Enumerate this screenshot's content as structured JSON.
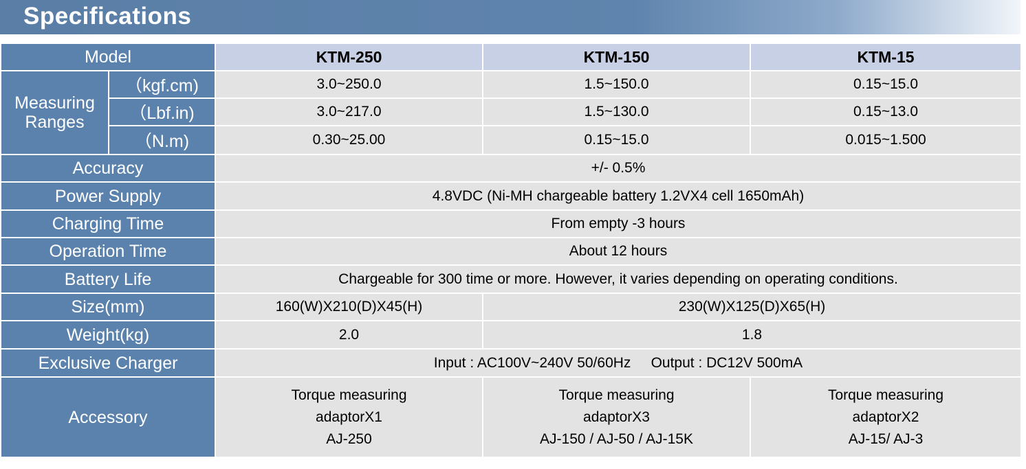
{
  "title": "Specifications",
  "columns": [
    "KTM-250",
    "KTM-150",
    "KTM-15"
  ],
  "labels": {
    "model": "Model",
    "measuring_ranges": [
      "Measuring",
      "Ranges"
    ],
    "units": [
      "（kgf.cm)",
      "（Lbf.in)",
      "（N.m)"
    ],
    "accuracy": "Accuracy",
    "power_supply": "Power Supply",
    "charging_time": "Charging Time",
    "operation_time": "Operation Time",
    "battery_life": "Battery Life",
    "size": "Size(mm)",
    "weight": "Weight(kg)",
    "charger": "Exclusive Charger",
    "accessory": "Accessory"
  },
  "ranges": [
    [
      "3.0~250.0",
      "1.5~150.0",
      "0.15~15.0"
    ],
    [
      "3.0~217.0",
      "1.5~130.0",
      "0.15~13.0"
    ],
    [
      "0.30~25.00",
      "0.15~15.0",
      "0.015~1.500"
    ]
  ],
  "accuracy": "+/- 0.5%",
  "power_supply": "4.8VDC (Ni-MH chargeable battery 1.2VX4 cell 1650mAh)",
  "charging_time": "From empty -3 hours",
  "operation_time": "About 12 hours",
  "battery_life": "Chargeable for 300 time or more. However, it varies depending on operating conditions.",
  "size": [
    "160(W)X210(D)X45(H)",
    "230(W)X125(D)X65(H)"
  ],
  "weight": [
    "2.0",
    "1.8"
  ],
  "charger": "Input : AC100V~240V 50/60Hz     Output : DC12V 500mA",
  "accessory": [
    [
      "Torque measuring",
      "adaptorX1",
      "AJ-250"
    ],
    [
      "Torque measuring",
      "adaptorX3",
      "AJ-150 / AJ-50 / AJ-15K"
    ],
    [
      "Torque measuring",
      "adaptorX2",
      "AJ-15/ AJ-3"
    ]
  ]
}
